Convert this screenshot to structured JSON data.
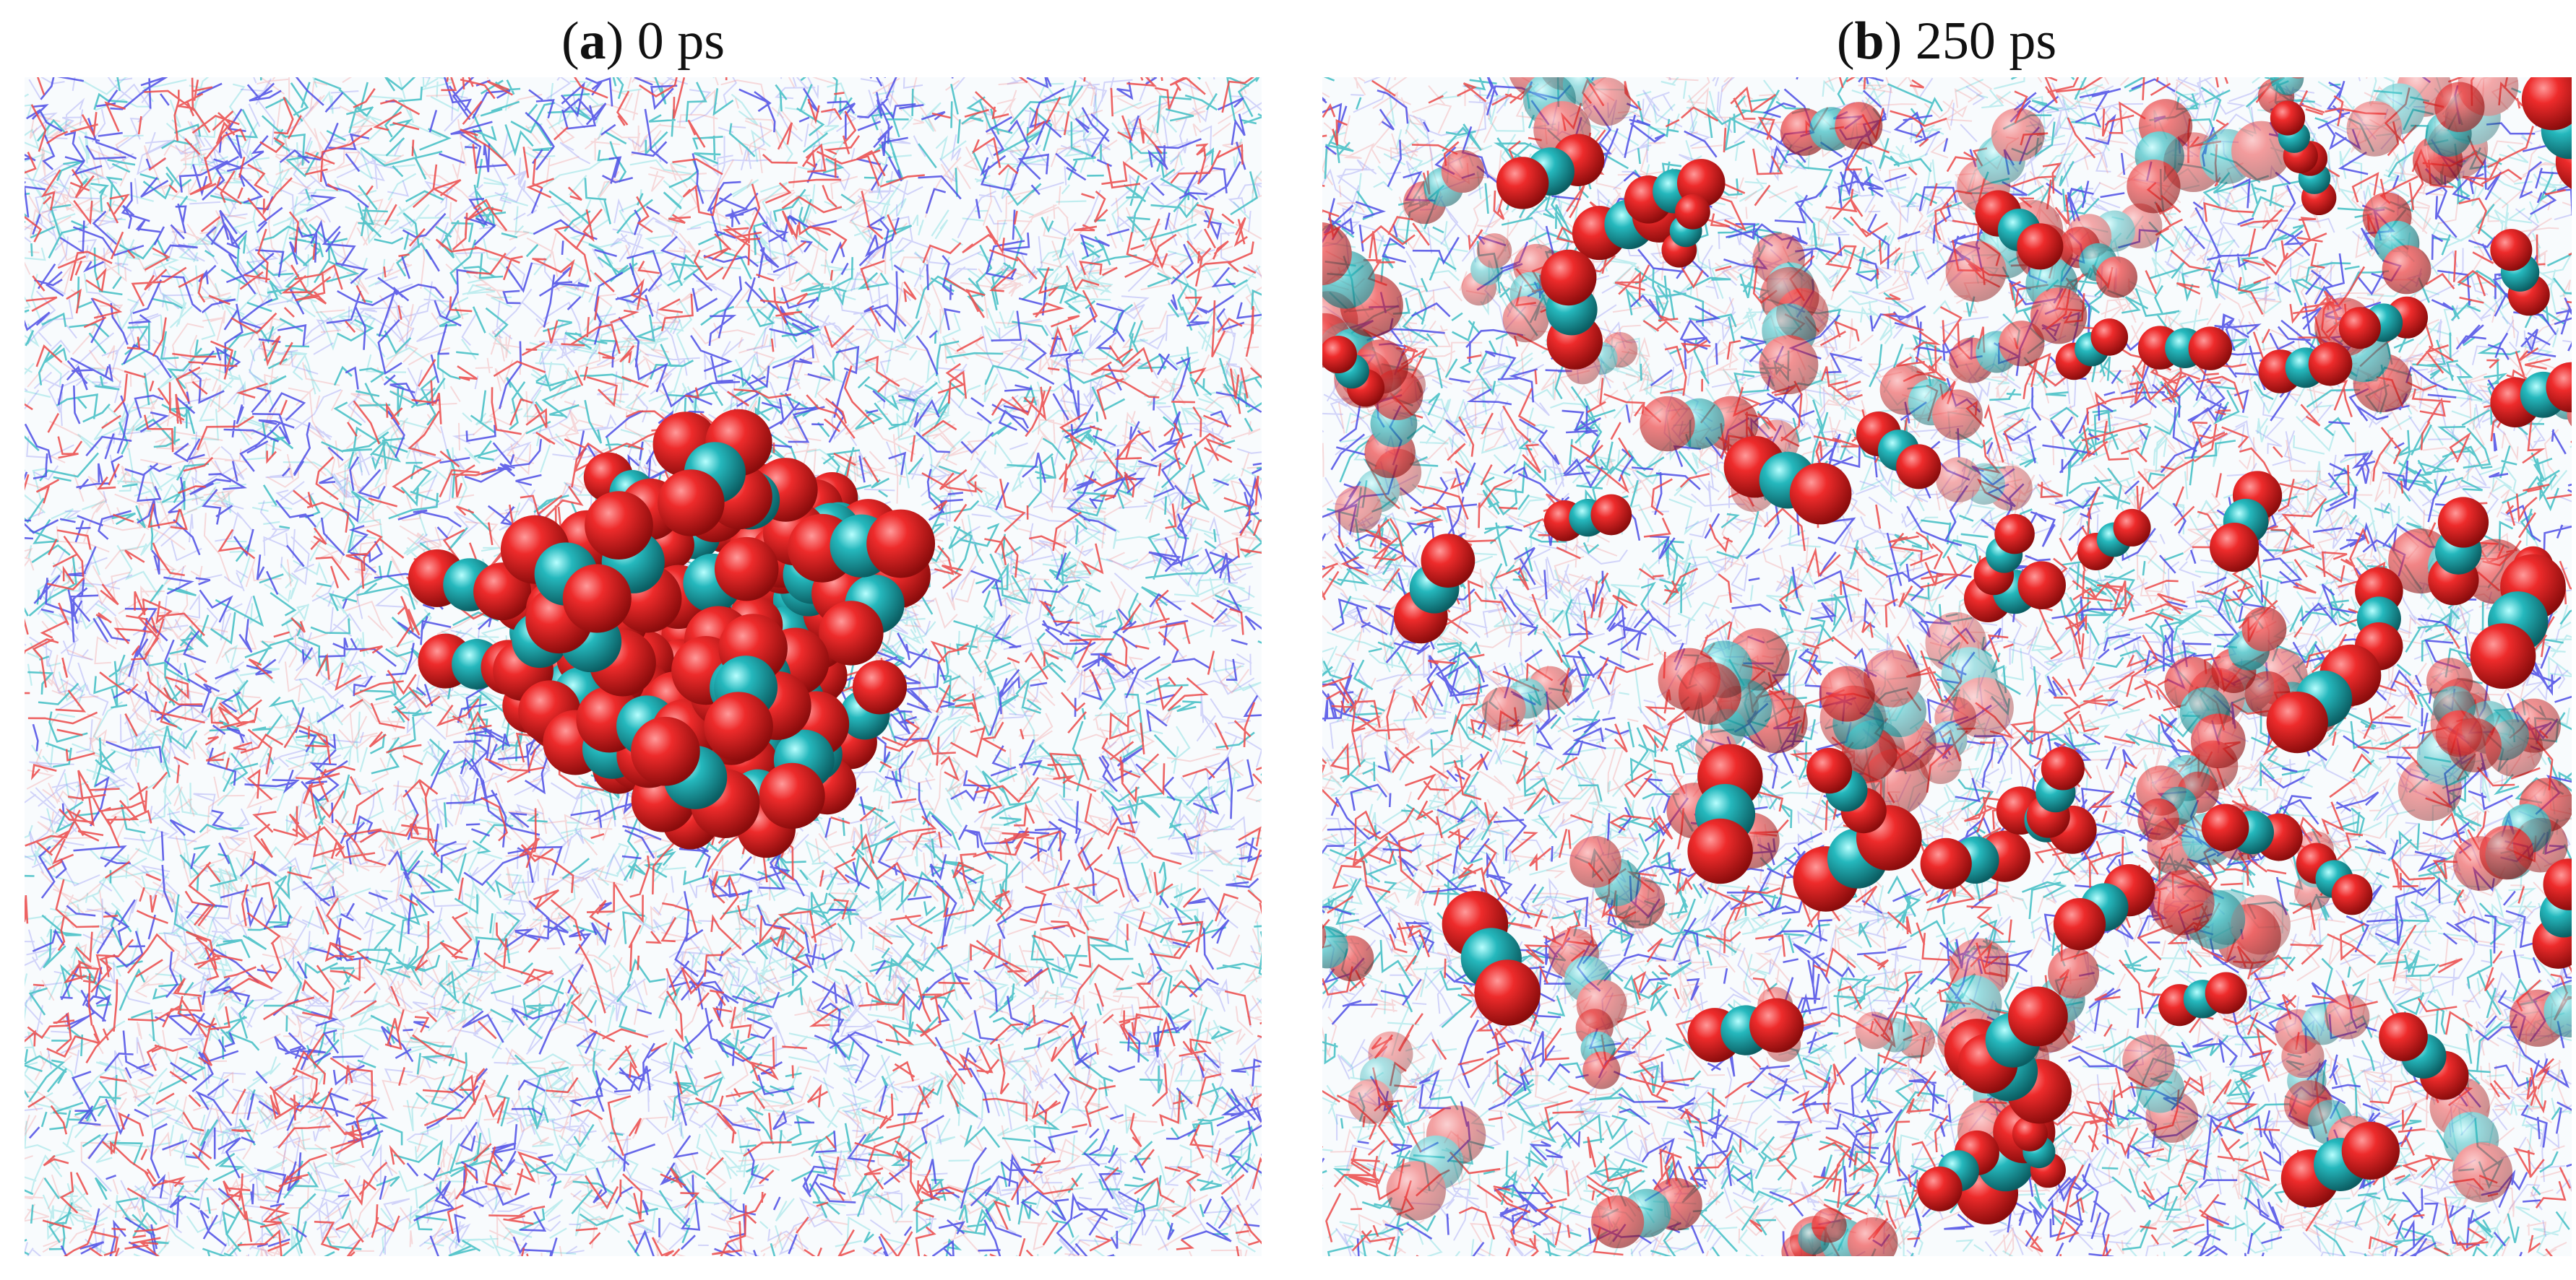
{
  "panels": [
    {
      "label_parts": [
        "(",
        "a",
        ") 0 ps"
      ]
    },
    {
      "label_parts": [
        "(",
        "b",
        ") 250 ps"
      ]
    }
  ]
}
